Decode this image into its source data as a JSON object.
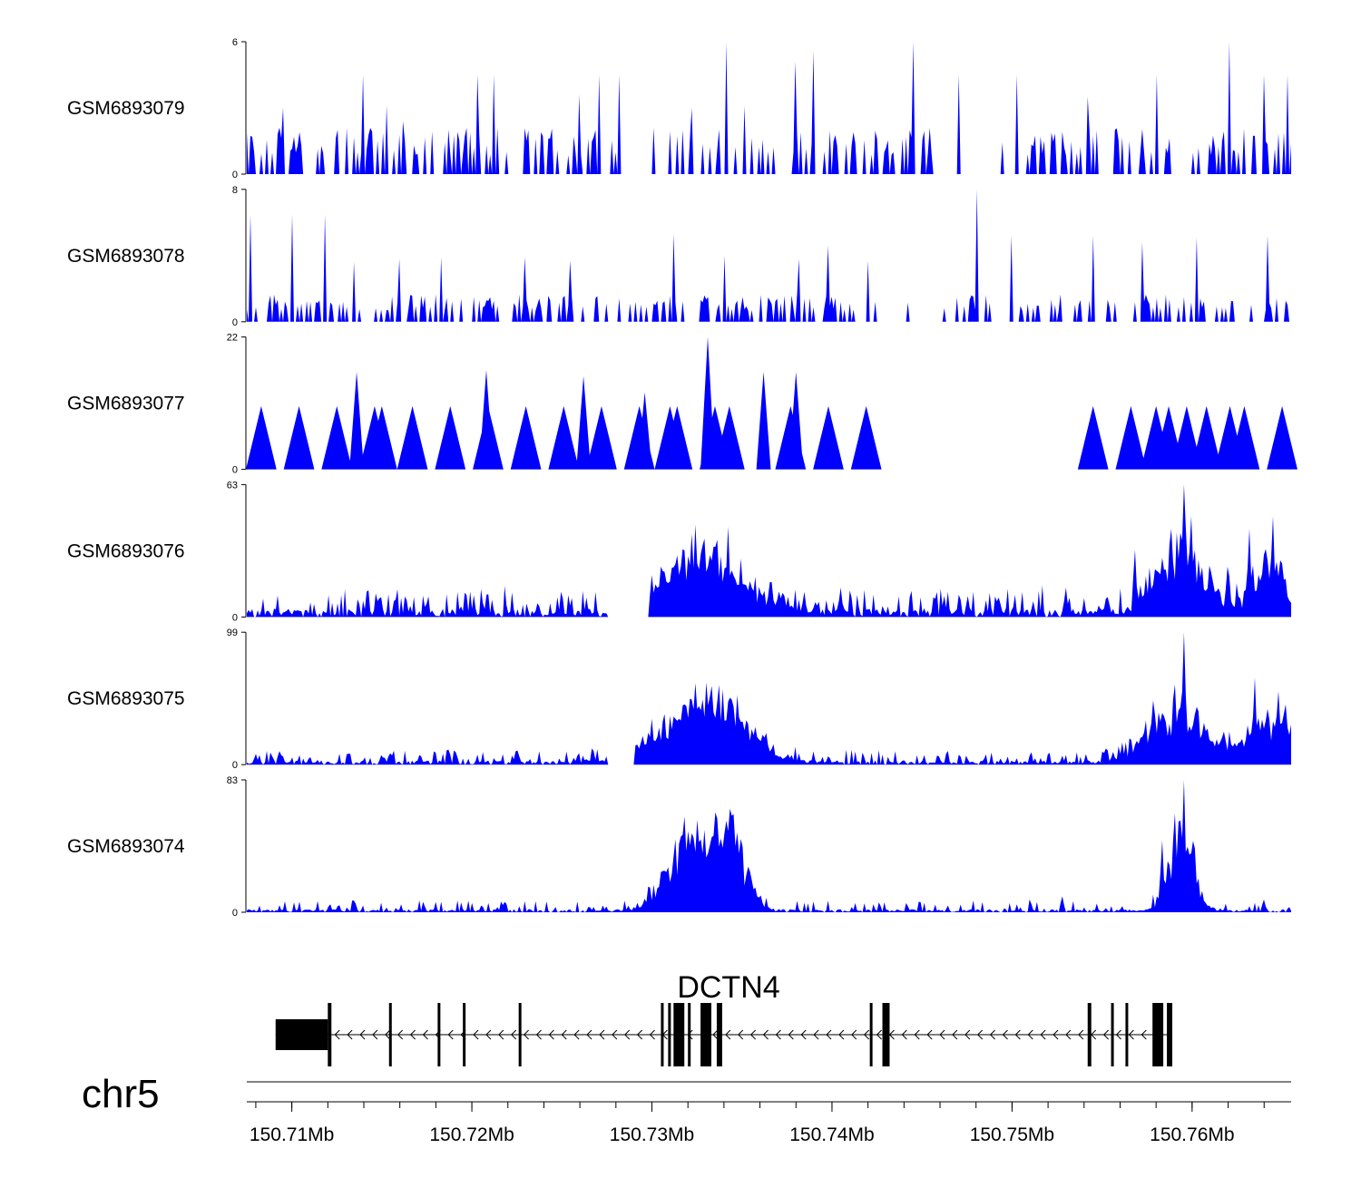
{
  "chart_data": {
    "type": "area",
    "title": "",
    "region": {
      "chromosome": "chr5",
      "start_mb": 150.7075,
      "end_mb": 150.7655
    },
    "x_ticks": [
      {
        "value": 150.71,
        "label": "150.71Mb"
      },
      {
        "value": 150.72,
        "label": "150.72Mb"
      },
      {
        "value": 150.73,
        "label": "150.73Mb"
      },
      {
        "value": 150.74,
        "label": "150.74Mb"
      },
      {
        "value": 150.75,
        "label": "150.75Mb"
      },
      {
        "value": 150.76,
        "label": "150.76Mb"
      }
    ],
    "minor_tick_step_mb": 0.002,
    "series_color": "#0000ff",
    "tracks": [
      {
        "name": "GSM6893079",
        "ymax": 6,
        "ymin_label": "0",
        "ymax_label": "6",
        "style": "sparse",
        "baseline": 0,
        "noise": 1.4,
        "peak_rate": 0.34,
        "points": [
          [
            150.7075,
            1.5
          ],
          [
            150.7093,
            2.1
          ],
          [
            150.7095,
            3.0
          ],
          [
            150.7125,
            2.0
          ],
          [
            150.714,
            4.5
          ],
          [
            150.7153,
            3.1
          ],
          [
            150.7162,
            2.4
          ],
          [
            150.7203,
            4.5
          ],
          [
            150.7212,
            4.5
          ],
          [
            150.726,
            3.6
          ],
          [
            150.7271,
            4.5
          ],
          [
            150.7282,
            4.5
          ],
          [
            150.7301,
            2.1
          ],
          [
            150.7322,
            3.0
          ],
          [
            150.7341,
            6.0
          ],
          [
            150.7351,
            3.1
          ],
          [
            150.738,
            5.1
          ],
          [
            150.739,
            5.6
          ],
          [
            150.7445,
            6.0
          ],
          [
            150.747,
            4.5
          ],
          [
            150.7503,
            4.5
          ],
          [
            150.7542,
            3.5
          ],
          [
            150.758,
            4.5
          ],
          [
            150.7621,
            6.0
          ],
          [
            150.764,
            4.5
          ],
          [
            150.7653,
            4.5
          ]
        ],
        "gaps": [
          [
            150.7287,
            150.7307
          ],
          [
            150.7456,
            150.7482
          ],
          [
            150.7482,
            150.7494
          ]
        ]
      },
      {
        "name": "GSM6893078",
        "ymax": 8,
        "ymin_label": "0",
        "ymax_label": "8",
        "style": "sparse",
        "baseline": 0,
        "noise": 1.1,
        "peak_rate": 0.34,
        "points": [
          [
            150.7077,
            6.5
          ],
          [
            150.71,
            6.5
          ],
          [
            150.7118,
            6.5
          ],
          [
            150.7135,
            3.6
          ],
          [
            150.716,
            3.8
          ],
          [
            150.7183,
            3.9
          ],
          [
            150.7229,
            3.9
          ],
          [
            150.7255,
            3.7
          ],
          [
            150.7312,
            5.3
          ],
          [
            150.734,
            4.0
          ],
          [
            150.7382,
            3.8
          ],
          [
            150.7398,
            4.6
          ],
          [
            150.742,
            3.7
          ],
          [
            150.748,
            8.0
          ],
          [
            150.75,
            5.2
          ],
          [
            150.7545,
            5.2
          ],
          [
            150.7572,
            4.8
          ],
          [
            150.7603,
            5.1
          ],
          [
            150.7642,
            5.2
          ]
        ],
        "gaps": [
          [
            150.7425,
            150.744
          ],
          [
            150.7444,
            150.7462
          ],
          [
            150.7488,
            150.75
          ]
        ]
      },
      {
        "name": "GSM6893077",
        "ymax": 22,
        "ymin_label": "0",
        "ymax_label": "22",
        "style": "triangles",
        "baseline": 0,
        "points": [
          [
            150.7136,
            16.2
          ],
          [
            150.715,
            10.5
          ],
          [
            150.7208,
            16.5
          ],
          [
            150.7262,
            15.5
          ],
          [
            150.7296,
            12.8
          ],
          [
            150.731,
            10.5
          ],
          [
            150.7331,
            22.0
          ],
          [
            150.7343,
            10.5
          ],
          [
            150.7362,
            16.2
          ],
          [
            150.738,
            16.2
          ],
          [
            150.758,
            10.5
          ],
          [
            150.7597,
            10.5
          ],
          [
            150.7621,
            10.5
          ]
        ],
        "gaps": [
          [
            150.7336,
            150.7354
          ],
          [
            150.7354,
            150.7375
          ],
          [
            150.7425,
            150.7458
          ],
          [
            150.7458,
            150.7483
          ],
          [
            150.7483,
            150.7525
          ]
        ]
      },
      {
        "name": "GSM6893076",
        "ymax": 63,
        "ymin_label": "0",
        "ymax_label": "63",
        "style": "signal",
        "baseline": 2.5,
        "noise": 2.5,
        "peak_rate": 0.26,
        "points": [
          [
            150.73,
            20
          ],
          [
            150.7305,
            24
          ],
          [
            150.7312,
            23
          ],
          [
            150.732,
            27
          ],
          [
            150.7333,
            21
          ],
          [
            150.7342,
            43
          ],
          [
            150.7355,
            14
          ],
          [
            150.7385,
            12
          ],
          [
            150.7405,
            14
          ],
          [
            150.7462,
            10
          ],
          [
            150.7475,
            10
          ],
          [
            150.753,
            14
          ],
          [
            150.7568,
            32
          ],
          [
            150.7588,
            42
          ],
          [
            150.7595,
            63
          ],
          [
            150.76,
            48
          ],
          [
            150.762,
            24
          ],
          [
            150.7632,
            42
          ],
          [
            150.7645,
            48
          ]
        ],
        "broad": [
          [
            150.7337,
            0.003,
            16
          ],
          [
            150.7321,
            0.0022,
            14
          ],
          [
            150.7594,
            0.0018,
            30
          ],
          [
            150.7642,
            0.0012,
            22
          ]
        ],
        "gaps": [
          [
            150.7275,
            150.73
          ]
        ]
      },
      {
        "name": "GSM6893075",
        "ymax": 99,
        "ymin_label": "0",
        "ymax_label": "99",
        "style": "signal",
        "baseline": 2.0,
        "noise": 2.0,
        "peak_rate": 0.26,
        "points": [
          [
            150.708,
            8
          ],
          [
            150.731,
            12
          ],
          [
            150.7318,
            45
          ],
          [
            150.7322,
            47
          ],
          [
            150.733,
            40
          ],
          [
            150.7342,
            47
          ],
          [
            150.7348,
            32
          ],
          [
            150.7552,
            12
          ],
          [
            150.7578,
            48
          ],
          [
            150.759,
            60
          ],
          [
            150.7595,
            99
          ],
          [
            150.7608,
            25
          ],
          [
            150.7635,
            65
          ],
          [
            150.7648,
            55
          ],
          [
            150.7652,
            45
          ]
        ],
        "broad": [
          [
            150.732,
            0.003,
            30
          ],
          [
            150.7341,
            0.0022,
            26
          ],
          [
            150.7592,
            0.0022,
            38
          ],
          [
            150.7645,
            0.002,
            30
          ]
        ],
        "gaps": [
          [
            150.7275,
            150.729
          ]
        ]
      },
      {
        "name": "GSM6893074",
        "ymax": 83,
        "ymin_label": "0",
        "ymax_label": "83",
        "style": "signal",
        "baseline": 1.2,
        "noise": 1.5,
        "peak_rate": 0.22,
        "points": [
          [
            150.7318,
            60
          ],
          [
            150.7325,
            58
          ],
          [
            150.7333,
            32
          ],
          [
            150.7343,
            65
          ],
          [
            150.7347,
            50
          ],
          [
            150.7528,
            10
          ],
          [
            150.7583,
            45
          ],
          [
            150.759,
            62
          ],
          [
            150.7595,
            83
          ],
          [
            150.7602,
            40
          ],
          [
            150.764,
            8
          ]
        ],
        "broad": [
          [
            150.732,
            0.0017,
            40
          ],
          [
            150.7343,
            0.0012,
            45
          ],
          [
            150.7594,
            0.0009,
            50
          ]
        ],
        "gaps": []
      }
    ],
    "gene": {
      "name": "DCTN4",
      "strand": "-",
      "start_mb": 150.7091,
      "end_mb": 150.7589,
      "exons": [
        {
          "start_mb": 150.7091,
          "end_mb": 150.712,
          "kind": "utr"
        },
        {
          "start_mb": 150.712,
          "end_mb": 150.7122,
          "kind": "cds"
        },
        {
          "start_mb": 150.7154,
          "end_mb": 150.7155,
          "kind": "cds"
        },
        {
          "start_mb": 150.7181,
          "end_mb": 150.7182,
          "kind": "cds"
        },
        {
          "start_mb": 150.7195,
          "end_mb": 150.7196,
          "kind": "cds"
        },
        {
          "start_mb": 150.7226,
          "end_mb": 150.7227,
          "kind": "cds"
        },
        {
          "start_mb": 150.7305,
          "end_mb": 150.7306,
          "kind": "cds"
        },
        {
          "start_mb": 150.7309,
          "end_mb": 150.731,
          "kind": "cds"
        },
        {
          "start_mb": 150.7312,
          "end_mb": 150.7318,
          "kind": "cds"
        },
        {
          "start_mb": 150.732,
          "end_mb": 150.7321,
          "kind": "cds"
        },
        {
          "start_mb": 150.7327,
          "end_mb": 150.7333,
          "kind": "cds"
        },
        {
          "start_mb": 150.7336,
          "end_mb": 150.7339,
          "kind": "cds"
        },
        {
          "start_mb": 150.7421,
          "end_mb": 150.7422,
          "kind": "cds"
        },
        {
          "start_mb": 150.7428,
          "end_mb": 150.7432,
          "kind": "cds"
        },
        {
          "start_mb": 150.7542,
          "end_mb": 150.7544,
          "kind": "cds"
        },
        {
          "start_mb": 150.7555,
          "end_mb": 150.7556,
          "kind": "cds"
        },
        {
          "start_mb": 150.7563,
          "end_mb": 150.7564,
          "kind": "cds"
        },
        {
          "start_mb": 150.7578,
          "end_mb": 150.7584,
          "kind": "cds"
        },
        {
          "start_mb": 150.7586,
          "end_mb": 150.7589,
          "kind": "cds"
        }
      ]
    },
    "chromosome_label": "chr5"
  }
}
